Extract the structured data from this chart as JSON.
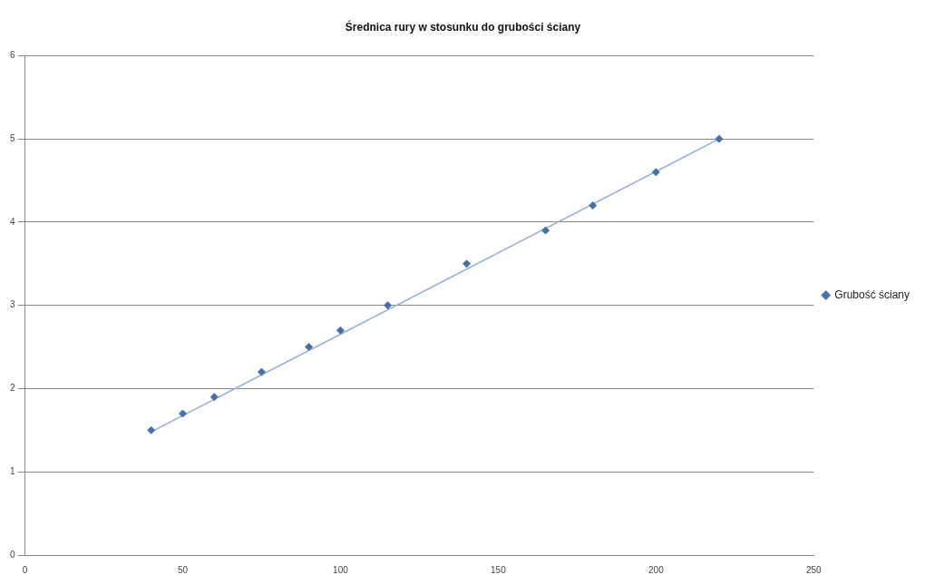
{
  "chart_data": {
    "type": "scatter",
    "title": "Średnica rury w stosunku do grubości ściany",
    "x": [
      40,
      50,
      60,
      75,
      90,
      100,
      115,
      140,
      165,
      180,
      200,
      220
    ],
    "series": [
      {
        "name": "Grubość ściany",
        "color": "#4a6fa5",
        "values": [
          1.5,
          1.7,
          1.9,
          2.2,
          2.5,
          2.7,
          3.0,
          3.5,
          3.9,
          4.2,
          4.6,
          5.0
        ]
      },
      {
        "type": "line",
        "color": "#95aed3",
        "x": [
          40,
          220
        ],
        "values": [
          1.48,
          5.0
        ],
        "marker": "none"
      }
    ],
    "xlim": [
      0,
      250
    ],
    "xticks": [
      0,
      50,
      100,
      150,
      200,
      250
    ],
    "ylim": [
      0,
      6
    ],
    "yticks": [
      0,
      1,
      2,
      3,
      4,
      5,
      6
    ],
    "grid": "y",
    "legend": "right",
    "marker": "diamond"
  }
}
